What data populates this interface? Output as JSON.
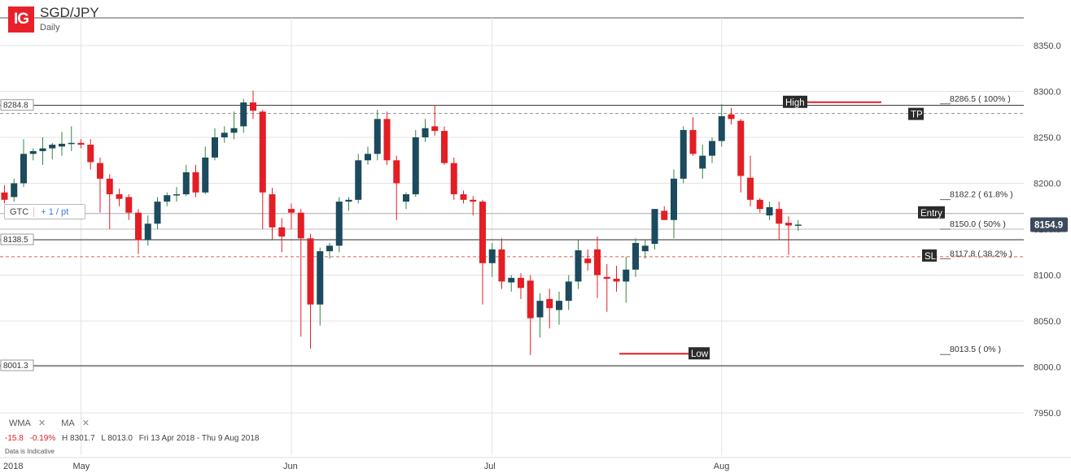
{
  "header": {
    "logo": "IG",
    "symbol": "SGD/JPY",
    "period": "Daily"
  },
  "order_box": {
    "type": "GTC",
    "step": "+ 1 / pt"
  },
  "indicators": {
    "items": [
      "WMA",
      "MA"
    ],
    "remove_glyph": "✕"
  },
  "stats": {
    "change": "-15.8",
    "change_pct": "-0.19%",
    "high": "H 8301.7",
    "low": "L 8013.0",
    "range": "Fri 13 Apr 2018 - Thu 9 Aug 2018"
  },
  "disclaimer": "Data is Indicative",
  "colors": {
    "up": "#1c4a5e",
    "down": "#e31e24",
    "wick_up": "#2e8b3c",
    "wick_down": "#e31e24",
    "grid": "#e3e3e3",
    "hline": "#2b2b2b",
    "dashed_gray": "#8e8e8e",
    "dashed_red": "#e0604d",
    "fib_line": "#bbbbbb",
    "label_dark": "#2b2b2b",
    "price_tag": "#3c4a5c"
  },
  "chart_data": {
    "type": "candlestick",
    "title": "SGD/JPY",
    "subtitle": "Daily",
    "ylim": [
      7920,
      8390
    ],
    "y_ticks": [
      7950,
      8000,
      8050,
      8100,
      8150,
      8200,
      8250,
      8300,
      8350
    ],
    "y_tick_labels": [
      "7950.0",
      "8000.0",
      "8050.0",
      "8100.0",
      "8150.0",
      "8200.0",
      "8250.0",
      "8300.0",
      "8350.0"
    ],
    "x_ticks": [
      {
        "label": "2018",
        "index": 0
      },
      {
        "label": "May",
        "index": 14
      },
      {
        "label": "Jun",
        "index": 36
      },
      {
        "label": "Jul",
        "index": 57
      },
      {
        "label": "Aug",
        "index": 81
      }
    ],
    "candles": [
      {
        "o": 8165,
        "h": 8190,
        "l": 8150,
        "c": 8178
      },
      {
        "o": 8175,
        "h": 8195,
        "l": 8160,
        "c": 8188
      },
      {
        "o": 8190,
        "h": 8192,
        "l": 8158,
        "c": 8176
      },
      {
        "o": 8172,
        "h": 8184,
        "l": 8160,
        "c": 8176
      },
      {
        "o": 8176,
        "h": 8196,
        "l": 8170,
        "c": 8186
      },
      {
        "o": 8180,
        "h": 8192,
        "l": 8172,
        "c": 8187
      },
      {
        "o": 8190,
        "h": 8198,
        "l": 8178,
        "c": 8182
      },
      {
        "o": 8185,
        "h": 8205,
        "l": 8180,
        "c": 8200
      },
      {
        "o": 8200,
        "h": 8248,
        "l": 8196,
        "c": 8232
      },
      {
        "o": 8232,
        "h": 8238,
        "l": 8225,
        "c": 8235
      },
      {
        "o": 8235,
        "h": 8250,
        "l": 8220,
        "c": 8238
      },
      {
        "o": 8238,
        "h": 8244,
        "l": 8226,
        "c": 8242
      },
      {
        "o": 8240,
        "h": 8256,
        "l": 8230,
        "c": 8243
      },
      {
        "o": 8243,
        "h": 8262,
        "l": 8235,
        "c": 8244
      },
      {
        "o": 8244,
        "h": 8248,
        "l": 8238,
        "c": 8242
      },
      {
        "o": 8242,
        "h": 8248,
        "l": 8215,
        "c": 8223
      },
      {
        "o": 8222,
        "h": 8228,
        "l": 8168,
        "c": 8205
      },
      {
        "o": 8205,
        "h": 8210,
        "l": 8150,
        "c": 8188
      },
      {
        "o": 8188,
        "h": 8194,
        "l": 8175,
        "c": 8183
      },
      {
        "o": 8185,
        "h": 8188,
        "l": 8160,
        "c": 8168
      },
      {
        "o": 8168,
        "h": 8172,
        "l": 8123,
        "c": 8138
      },
      {
        "o": 8138,
        "h": 8165,
        "l": 8132,
        "c": 8156
      },
      {
        "o": 8156,
        "h": 8185,
        "l": 8150,
        "c": 8180
      },
      {
        "o": 8180,
        "h": 8190,
        "l": 8175,
        "c": 8187
      },
      {
        "o": 8187,
        "h": 8196,
        "l": 8180,
        "c": 8188
      },
      {
        "o": 8188,
        "h": 8220,
        "l": 8186,
        "c": 8212
      },
      {
        "o": 8212,
        "h": 8220,
        "l": 8185,
        "c": 8190
      },
      {
        "o": 8190,
        "h": 8240,
        "l": 8188,
        "c": 8228
      },
      {
        "o": 8228,
        "h": 8260,
        "l": 8225,
        "c": 8250
      },
      {
        "o": 8250,
        "h": 8262,
        "l": 8244,
        "c": 8255
      },
      {
        "o": 8255,
        "h": 8278,
        "l": 8248,
        "c": 8260
      },
      {
        "o": 8262,
        "h": 8292,
        "l": 8255,
        "c": 8288
      },
      {
        "o": 8288,
        "h": 8301,
        "l": 8270,
        "c": 8279
      },
      {
        "o": 8278,
        "h": 8280,
        "l": 8150,
        "c": 8190
      },
      {
        "o": 8188,
        "h": 8195,
        "l": 8138,
        "c": 8152
      },
      {
        "o": 8152,
        "h": 8162,
        "l": 8125,
        "c": 8142
      },
      {
        "o": 8172,
        "h": 8178,
        "l": 8150,
        "c": 8168
      },
      {
        "o": 8168,
        "h": 8172,
        "l": 8033,
        "c": 8140
      },
      {
        "o": 8140,
        "h": 8145,
        "l": 8020,
        "c": 8068
      },
      {
        "o": 8068,
        "h": 8130,
        "l": 8045,
        "c": 8126
      },
      {
        "o": 8126,
        "h": 8135,
        "l": 8118,
        "c": 8132
      },
      {
        "o": 8132,
        "h": 8185,
        "l": 8125,
        "c": 8180
      },
      {
        "o": 8180,
        "h": 8185,
        "l": 8170,
        "c": 8182
      },
      {
        "o": 8182,
        "h": 8232,
        "l": 8178,
        "c": 8225
      },
      {
        "o": 8225,
        "h": 8240,
        "l": 8220,
        "c": 8232
      },
      {
        "o": 8232,
        "h": 8280,
        "l": 8225,
        "c": 8270
      },
      {
        "o": 8270,
        "h": 8278,
        "l": 8220,
        "c": 8225
      },
      {
        "o": 8225,
        "h": 8230,
        "l": 8160,
        "c": 8200
      },
      {
        "o": 8180,
        "h": 8190,
        "l": 8172,
        "c": 8188
      },
      {
        "o": 8188,
        "h": 8258,
        "l": 8185,
        "c": 8250
      },
      {
        "o": 8250,
        "h": 8270,
        "l": 8245,
        "c": 8260
      },
      {
        "o": 8262,
        "h": 8285,
        "l": 8252,
        "c": 8257
      },
      {
        "o": 8257,
        "h": 8262,
        "l": 8220,
        "c": 8222
      },
      {
        "o": 8222,
        "h": 8228,
        "l": 8182,
        "c": 8188
      },
      {
        "o": 8188,
        "h": 8192,
        "l": 8178,
        "c": 8182
      },
      {
        "o": 8182,
        "h": 8186,
        "l": 8165,
        "c": 8180
      },
      {
        "o": 8180,
        "h": 8182,
        "l": 8068,
        "c": 8113
      },
      {
        "o": 8113,
        "h": 8135,
        "l": 8098,
        "c": 8128
      },
      {
        "o": 8128,
        "h": 8140,
        "l": 8085,
        "c": 8093
      },
      {
        "o": 8092,
        "h": 8100,
        "l": 8082,
        "c": 8097
      },
      {
        "o": 8097,
        "h": 8102,
        "l": 8074,
        "c": 8086
      },
      {
        "o": 8094,
        "h": 8100,
        "l": 8013,
        "c": 8053
      },
      {
        "o": 8054,
        "h": 8080,
        "l": 8032,
        "c": 8072
      },
      {
        "o": 8074,
        "h": 8085,
        "l": 8042,
        "c": 8064
      },
      {
        "o": 8062,
        "h": 8082,
        "l": 8046,
        "c": 8072
      },
      {
        "o": 8072,
        "h": 8100,
        "l": 8062,
        "c": 8093
      },
      {
        "o": 8093,
        "h": 8138,
        "l": 8085,
        "c": 8127
      },
      {
        "o": 8118,
        "h": 8128,
        "l": 8105,
        "c": 8113
      },
      {
        "o": 8128,
        "h": 8142,
        "l": 8075,
        "c": 8100
      },
      {
        "o": 8098,
        "h": 8112,
        "l": 8060,
        "c": 8096
      },
      {
        "o": 8096,
        "h": 8110,
        "l": 8082,
        "c": 8093
      },
      {
        "o": 8093,
        "h": 8120,
        "l": 8070,
        "c": 8106
      },
      {
        "o": 8106,
        "h": 8140,
        "l": 8098,
        "c": 8135
      },
      {
        "o": 8126,
        "h": 8138,
        "l": 8118,
        "c": 8132
      },
      {
        "o": 8134,
        "h": 8172,
        "l": 8128,
        "c": 8172
      },
      {
        "o": 8170,
        "h": 8175,
        "l": 8160,
        "c": 8160
      },
      {
        "o": 8160,
        "h": 8215,
        "l": 8140,
        "c": 8205
      },
      {
        "o": 8205,
        "h": 8262,
        "l": 8200,
        "c": 8258
      },
      {
        "o": 8258,
        "h": 8272,
        "l": 8230,
        "c": 8232
      },
      {
        "o": 8216,
        "h": 8242,
        "l": 8205,
        "c": 8230
      },
      {
        "o": 8230,
        "h": 8250,
        "l": 8222,
        "c": 8246
      },
      {
        "o": 8246,
        "h": 8286,
        "l": 8240,
        "c": 8273
      },
      {
        "o": 8275,
        "h": 8282,
        "l": 8264,
        "c": 8270
      },
      {
        "o": 8268,
        "h": 8270,
        "l": 8190,
        "c": 8208
      },
      {
        "o": 8206,
        "h": 8230,
        "l": 8175,
        "c": 8182
      },
      {
        "o": 8182,
        "h": 8184,
        "l": 8168,
        "c": 8172
      },
      {
        "o": 8165,
        "h": 8180,
        "l": 8160,
        "c": 8174
      },
      {
        "o": 8172,
        "h": 8180,
        "l": 8138,
        "c": 8156
      },
      {
        "o": 8157,
        "h": 8164,
        "l": 8122,
        "c": 8154
      },
      {
        "o": 8155,
        "h": 8160,
        "l": 8148,
        "c": 8155
      }
    ],
    "candle_offset": -6,
    "horizontal_levels": [
      {
        "value": 8284.8,
        "label": "8284.8",
        "style": "solid"
      },
      {
        "value": 8138.5,
        "label": "8138.5",
        "style": "solid"
      },
      {
        "value": 8001.3,
        "label": "8001.3",
        "style": "solid"
      }
    ],
    "dashed_levels": [
      {
        "value": 8276,
        "style": "dashed-gray"
      },
      {
        "value": 8120,
        "style": "dashed-red"
      }
    ],
    "entry_line": 8167,
    "fib_levels": [
      {
        "value": 8286.5,
        "label": "8286.5 ( 100% )"
      },
      {
        "value": 8182.2,
        "label": "8182.2 ( 61.8% )"
      },
      {
        "value": 8150.0,
        "label": "8150.0 ( 50% )"
      },
      {
        "value": 8117.8,
        "label": "8117.8 ( 38.2% )"
      },
      {
        "value": 8013.5,
        "label": "8013.5 ( 0% )"
      }
    ],
    "markers": [
      {
        "text": "High",
        "value": 8286.5,
        "kind": "high"
      },
      {
        "text": "Low",
        "value": 8013.5,
        "kind": "low"
      },
      {
        "text": "TP",
        "value": 8276,
        "kind": "tag"
      },
      {
        "text": "Entry",
        "value": 8167,
        "kind": "tag"
      },
      {
        "text": "SL",
        "value": 8120,
        "kind": "tag"
      }
    ],
    "last_price": {
      "value": 8154.9,
      "label": "8154.9"
    }
  }
}
